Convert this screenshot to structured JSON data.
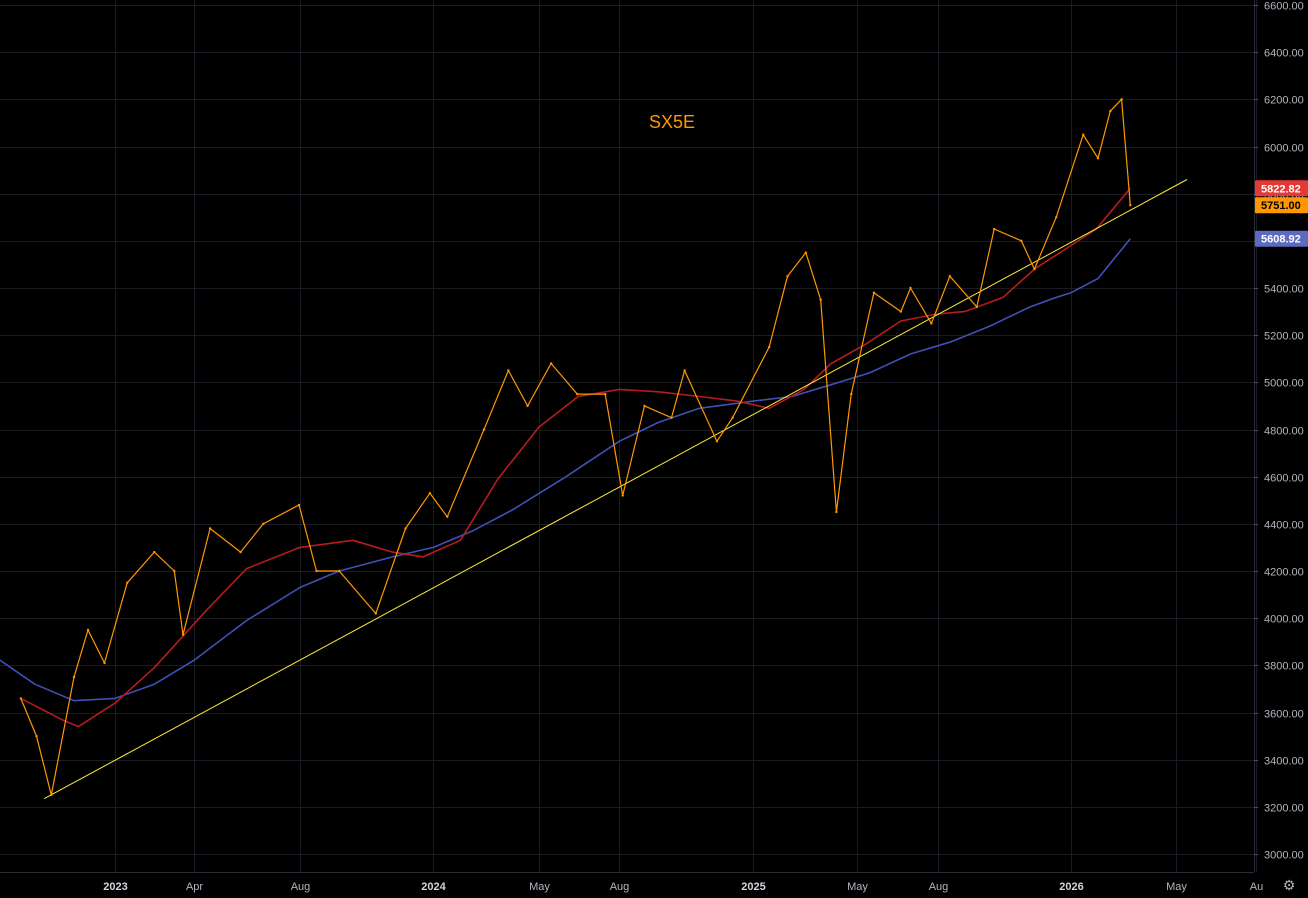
{
  "chart_data": {
    "type": "line",
    "title": "SX5E",
    "ylim": [
      3000,
      6600
    ],
    "y_ticks": [
      "6600.00",
      "6400.00",
      "6200.00",
      "6000.00",
      "5800.00",
      "5600.00",
      "5400.00",
      "5200.00",
      "5000.00",
      "4800.00",
      "4600.00",
      "4400.00",
      "4200.00",
      "4000.00",
      "3800.00",
      "3600.00",
      "3400.00",
      "3200.00",
      "3000.00"
    ],
    "x_ticks": [
      {
        "label": "2023",
        "date": "2023-01-01",
        "year": true
      },
      {
        "label": "Apr",
        "date": "2023-04-01",
        "year": false
      },
      {
        "label": "Aug",
        "date": "2023-08-01",
        "year": false
      },
      {
        "label": "2024",
        "date": "2024-01-01",
        "year": true
      },
      {
        "label": "May",
        "date": "2024-05-01",
        "year": false
      },
      {
        "label": "Aug",
        "date": "2024-08-01",
        "year": false
      },
      {
        "label": "2025",
        "date": "2025-01-01",
        "year": true
      },
      {
        "label": "May",
        "date": "2025-05-01",
        "year": false
      },
      {
        "label": "Aug",
        "date": "2025-08-01",
        "year": false
      },
      {
        "label": "2026",
        "date": "2026-01-01",
        "year": true
      },
      {
        "label": "May",
        "date": "2026-05-01",
        "year": false
      },
      {
        "label": "Au",
        "date": "2026-08-01",
        "year": false
      }
    ],
    "grid": true,
    "series": [
      {
        "key": "price",
        "color": "#ff9800",
        "x": [
          "2022-09-15",
          "2022-10-03",
          "2022-10-20",
          "2022-11-15",
          "2022-12-01",
          "2022-12-20",
          "2023-01-15",
          "2023-02-15",
          "2023-03-10",
          "2023-03-20",
          "2023-04-20",
          "2023-05-25",
          "2023-06-20",
          "2023-07-31",
          "2023-08-20",
          "2023-09-15",
          "2023-10-27",
          "2023-11-30",
          "2023-12-28",
          "2024-01-17",
          "2024-02-28",
          "2024-03-27",
          "2024-04-18",
          "2024-05-15",
          "2024-06-14",
          "2024-07-16",
          "2024-08-05",
          "2024-08-30",
          "2024-09-30",
          "2024-10-15",
          "2024-11-21",
          "2024-12-09",
          "2025-01-20",
          "2025-02-10",
          "2025-03-03",
          "2025-03-20",
          "2025-04-07",
          "2025-04-24",
          "2025-05-20",
          "2025-06-20",
          "2025-07-01",
          "2025-07-25",
          "2025-08-15",
          "2025-09-15",
          "2025-10-05",
          "2025-11-05",
          "2025-11-20",
          "2025-12-15",
          "2026-01-15",
          "2026-02-01",
          "2026-02-15",
          "2026-02-28",
          "2026-03-10"
        ],
        "y": [
          3660,
          3500,
          3250,
          3750,
          3950,
          3810,
          4150,
          4280,
          4200,
          3930,
          4380,
          4280,
          4400,
          4480,
          4200,
          4200,
          4020,
          4380,
          4530,
          4430,
          4800,
          5050,
          4900,
          5080,
          4950,
          4950,
          4520,
          4900,
          4850,
          5050,
          4750,
          4850,
          5150,
          5450,
          5550,
          5350,
          4450,
          4950,
          5380,
          5300,
          5400,
          5250,
          5450,
          5320,
          5650,
          5600,
          5480,
          5700,
          6050,
          5950,
          6150,
          6200,
          5751
        ]
      },
      {
        "key": "ma_fast",
        "label": "5822.82",
        "color": "#b71c1c",
        "x": [
          "2022-09-15",
          "2022-11-01",
          "2022-11-20",
          "2023-01-01",
          "2023-02-15",
          "2023-04-15",
          "2023-06-01",
          "2023-08-01",
          "2023-10-01",
          "2023-11-15",
          "2023-12-20",
          "2024-02-01",
          "2024-03-15",
          "2024-05-01",
          "2024-06-15",
          "2024-08-01",
          "2024-09-15",
          "2024-11-01",
          "2024-12-15",
          "2025-01-20",
          "2025-03-01",
          "2025-04-01",
          "2025-05-10",
          "2025-06-20",
          "2025-08-01",
          "2025-09-01",
          "2025-10-15",
          "2025-11-20",
          "2026-01-01",
          "2026-01-30",
          "2026-03-10"
        ],
        "y": [
          3660,
          3570,
          3540,
          3640,
          3790,
          4030,
          4210,
          4300,
          4330,
          4280,
          4260,
          4330,
          4590,
          4810,
          4940,
          4970,
          4960,
          4940,
          4920,
          4890,
          4970,
          5080,
          5160,
          5260,
          5290,
          5300,
          5360,
          5480,
          5580,
          5650,
          5822.82
        ]
      },
      {
        "key": "ma_slow",
        "label": "5608.92",
        "color": "#3f51b5",
        "x": [
          "2022-07-20",
          "2022-08-15",
          "2022-10-01",
          "2022-11-15",
          "2023-01-01",
          "2023-02-15",
          "2023-04-01",
          "2023-06-01",
          "2023-08-01",
          "2023-09-15",
          "2023-11-15",
          "2024-01-01",
          "2024-02-15",
          "2024-04-01",
          "2024-06-01",
          "2024-08-01",
          "2024-09-15",
          "2024-11-01",
          "2025-01-01",
          "2025-02-15",
          "2025-04-01",
          "2025-05-15",
          "2025-07-01",
          "2025-08-15",
          "2025-10-01",
          "2025-11-15",
          "2025-12-15",
          "2026-01-01",
          "2026-02-01",
          "2026-03-10"
        ],
        "y": [
          3880,
          3840,
          3720,
          3650,
          3660,
          3720,
          3820,
          3990,
          4130,
          4200,
          4260,
          4300,
          4370,
          4460,
          4600,
          4750,
          4830,
          4890,
          4920,
          4940,
          4990,
          5040,
          5120,
          5170,
          5240,
          5320,
          5360,
          5380,
          5440,
          5608.92
        ]
      },
      {
        "key": "trendline",
        "color": "#ffeb3b",
        "x": [
          "2022-10-12",
          "2026-05-14"
        ],
        "y": [
          3235,
          5860
        ]
      }
    ],
    "price_labels": [
      {
        "label": "5822.82",
        "value": 5822.82,
        "color": "#e53935"
      },
      {
        "label": "5751.00",
        "value": 5751.0,
        "color": "#ff9800"
      },
      {
        "label": "5608.92",
        "value": 5608.92,
        "color": "#5c6bc0"
      }
    ]
  },
  "settings_icon": "settings-gear-icon"
}
